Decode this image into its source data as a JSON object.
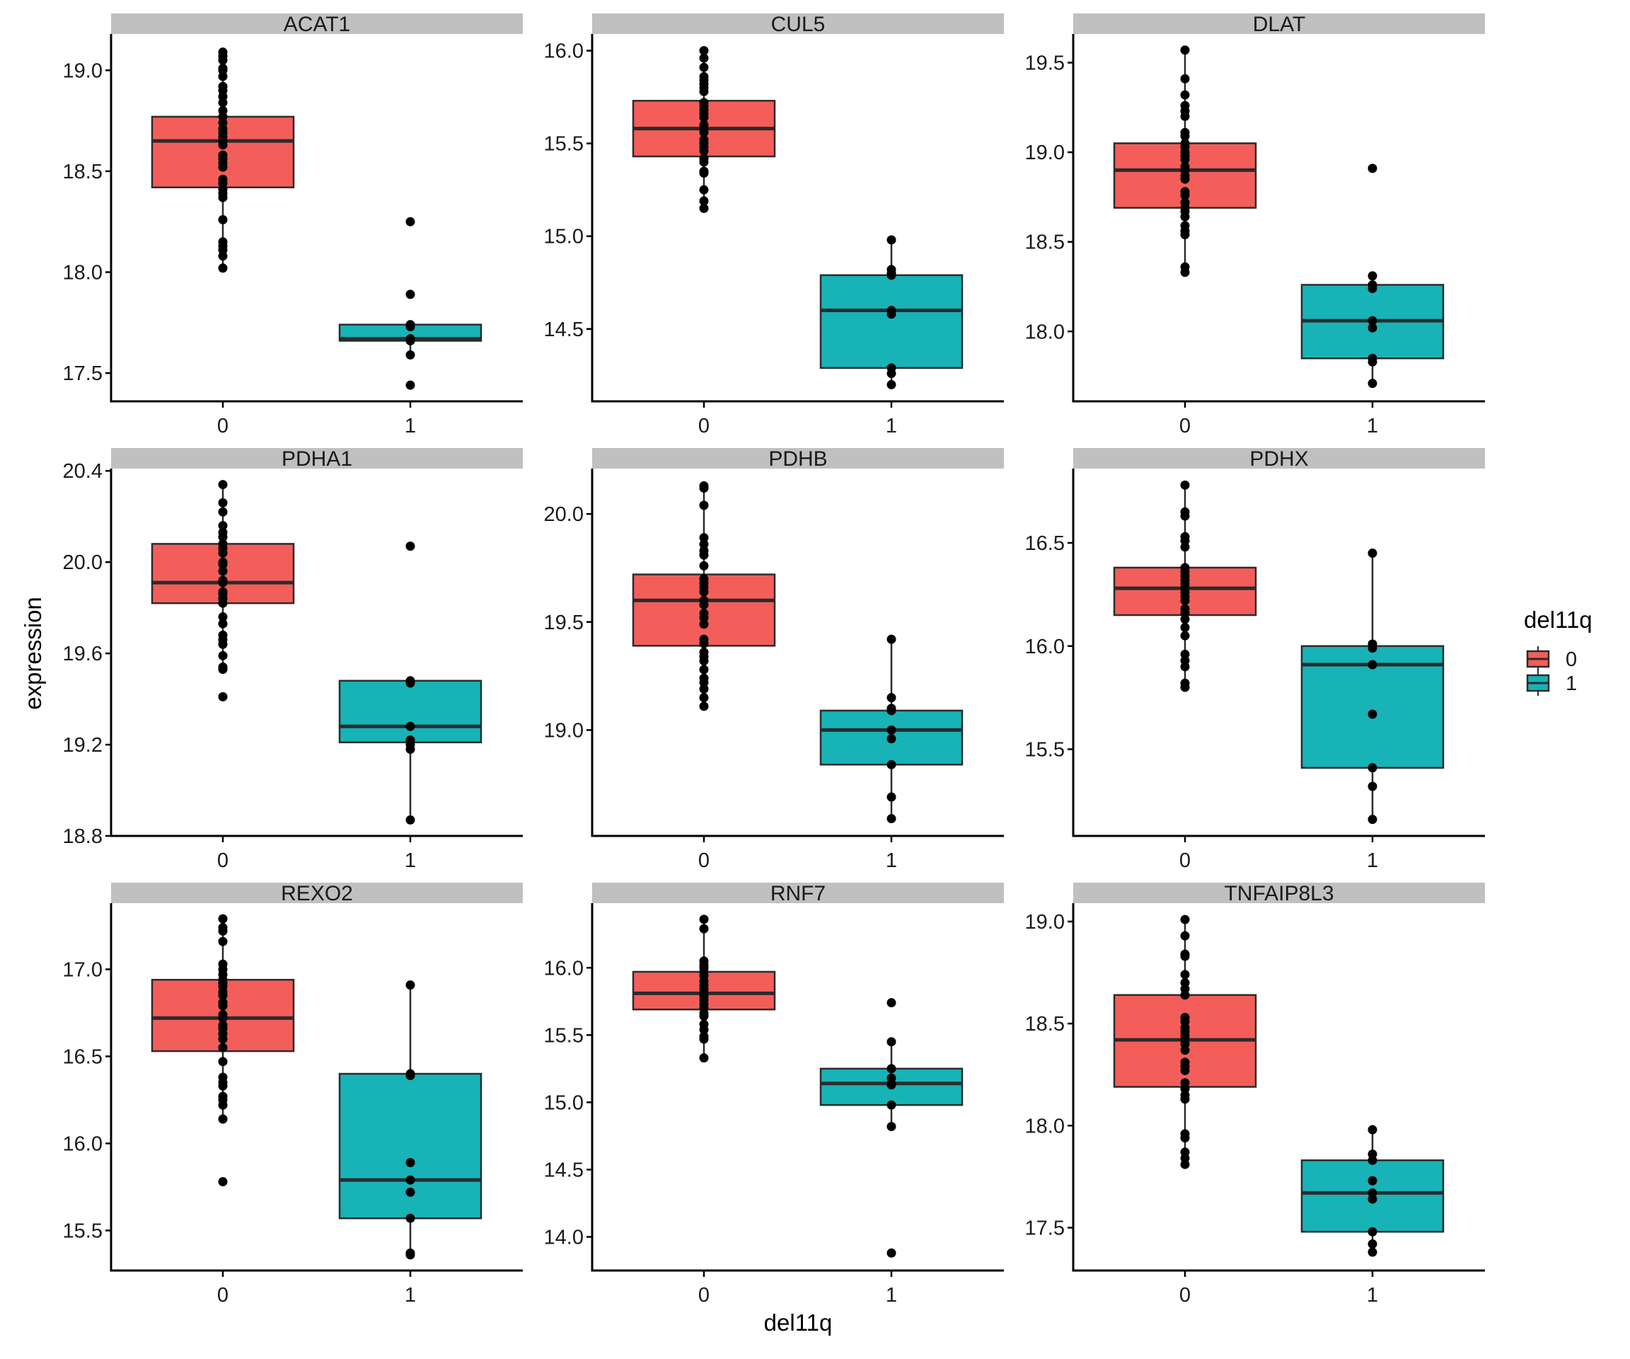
{
  "chart_data": {
    "type": "box",
    "layout": "facet_wrap 3x3, free y scales",
    "xlabel": "del11q",
    "ylabel": "expression",
    "categories": [
      "0",
      "1"
    ],
    "legend": {
      "title": "del11q",
      "position": "right",
      "entries": [
        {
          "label": "0",
          "color": "#F35E5A"
        },
        {
          "label": "1",
          "color": "#17B3B7"
        }
      ]
    },
    "grid": false,
    "panels": [
      {
        "title": "ACAT1",
        "ylim": [
          17.36,
          19.18
        ],
        "yticks": [
          "17.5",
          "18.0",
          "18.5",
          "19.0"
        ],
        "groups": [
          {
            "category": "0",
            "q1": 18.42,
            "median": 18.65,
            "q3": 18.77,
            "whisker_low": 18.02,
            "whisker_high": 19.09,
            "points": [
              19.09,
              19.07,
              19.05,
              19.01,
              19.0,
              18.97,
              18.92,
              18.9,
              18.87,
              18.84,
              18.8,
              18.77,
              18.74,
              18.71,
              18.69,
              18.67,
              18.65,
              18.63,
              18.58,
              18.56,
              18.54,
              18.52,
              18.46,
              18.44,
              18.41,
              18.39,
              18.37,
              18.26,
              18.15,
              18.13,
              18.11,
              18.08,
              18.02
            ]
          },
          {
            "category": "1",
            "q1": 17.66,
            "median": 17.67,
            "q3": 17.74,
            "whisker_low": 17.59,
            "whisker_high": 17.74,
            "points": [
              18.25,
              17.89,
              17.74,
              17.73,
              17.67,
              17.66,
              17.59,
              17.44
            ]
          }
        ]
      },
      {
        "title": "CUL5",
        "ylim": [
          14.11,
          16.09
        ],
        "yticks": [
          "14.5",
          "15.0",
          "15.5",
          "16.0"
        ],
        "groups": [
          {
            "category": "0",
            "q1": 15.43,
            "median": 15.58,
            "q3": 15.73,
            "whisker_low": 15.15,
            "whisker_high": 16.0,
            "points": [
              16.0,
              15.96,
              15.91,
              15.86,
              15.84,
              15.82,
              15.8,
              15.78,
              15.72,
              15.7,
              15.68,
              15.66,
              15.64,
              15.6,
              15.58,
              15.56,
              15.52,
              15.5,
              15.48,
              15.46,
              15.42,
              15.4,
              15.35,
              15.34,
              15.25,
              15.19,
              15.15
            ]
          },
          {
            "category": "1",
            "q1": 14.29,
            "median": 14.6,
            "q3": 14.79,
            "whisker_low": 14.2,
            "whisker_high": 14.98,
            "points": [
              14.98,
              14.82,
              14.8,
              14.79,
              14.6,
              14.58,
              14.29,
              14.26,
              14.2
            ]
          }
        ]
      },
      {
        "title": "DLAT",
        "ylim": [
          17.61,
          19.66
        ],
        "yticks": [
          "18.0",
          "18.5",
          "19.0",
          "19.5"
        ],
        "groups": [
          {
            "category": "0",
            "q1": 18.69,
            "median": 18.9,
            "q3": 19.05,
            "whisker_low": 18.33,
            "whisker_high": 19.57,
            "points": [
              19.57,
              19.41,
              19.32,
              19.26,
              19.23,
              19.2,
              19.11,
              19.09,
              19.05,
              19.03,
              19.0,
              18.98,
              18.96,
              18.92,
              18.9,
              18.87,
              18.85,
              18.78,
              18.76,
              18.72,
              18.69,
              18.67,
              18.64,
              18.59,
              18.56,
              18.54,
              18.36,
              18.33
            ]
          },
          {
            "category": "1",
            "q1": 17.85,
            "median": 18.06,
            "q3": 18.26,
            "whisker_low": 17.71,
            "whisker_high": 18.31,
            "points": [
              18.91,
              18.31,
              18.26,
              18.24,
              18.06,
              18.02,
              17.85,
              17.83,
              17.71
            ]
          }
        ]
      },
      {
        "title": "PDHA1",
        "ylim": [
          18.8,
          20.41
        ],
        "yticks": [
          "18.8",
          "19.2",
          "19.6",
          "20.0",
          "20.4"
        ],
        "groups": [
          {
            "category": "0",
            "q1": 19.82,
            "median": 19.91,
            "q3": 20.08,
            "whisker_low": 19.53,
            "whisker_high": 20.34,
            "points": [
              20.34,
              20.26,
              20.22,
              20.16,
              20.13,
              20.11,
              20.08,
              20.06,
              20.04,
              20.0,
              19.99,
              19.96,
              19.92,
              19.91,
              19.87,
              19.86,
              19.84,
              19.82,
              19.76,
              19.73,
              19.68,
              19.66,
              19.64,
              19.59,
              19.54,
              19.53,
              19.41
            ]
          },
          {
            "category": "1",
            "q1": 19.21,
            "median": 19.28,
            "q3": 19.48,
            "whisker_low": 18.87,
            "whisker_high": 19.48,
            "points": [
              20.07,
              19.48,
              19.47,
              19.28,
              19.22,
              19.2,
              19.18,
              18.87
            ]
          }
        ]
      },
      {
        "title": "PDHB",
        "ylim": [
          18.51,
          20.21
        ],
        "yticks": [
          "19.0",
          "19.5",
          "20.0"
        ],
        "groups": [
          {
            "category": "0",
            "q1": 19.39,
            "median": 19.6,
            "q3": 19.72,
            "whisker_low": 19.11,
            "whisker_high": 20.13,
            "points": [
              20.13,
              20.12,
              20.04,
              19.89,
              19.86,
              19.83,
              19.81,
              19.76,
              19.7,
              19.68,
              19.66,
              19.64,
              19.6,
              19.58,
              19.54,
              19.52,
              19.49,
              19.42,
              19.4,
              19.36,
              19.34,
              19.32,
              19.28,
              19.24,
              19.22,
              19.19,
              19.15,
              19.11
            ]
          },
          {
            "category": "1",
            "q1": 18.84,
            "median": 19.0,
            "q3": 19.09,
            "whisker_low": 18.59,
            "whisker_high": 19.42,
            "points": [
              19.42,
              19.15,
              19.1,
              19.09,
              19.0,
              18.96,
              18.84,
              18.69,
              18.59
            ]
          }
        ]
      },
      {
        "title": "PDHX",
        "ylim": [
          15.08,
          16.86
        ],
        "yticks": [
          "15.5",
          "16.0",
          "16.5"
        ],
        "groups": [
          {
            "category": "0",
            "q1": 16.15,
            "median": 16.28,
            "q3": 16.38,
            "whisker_low": 15.8,
            "whisker_high": 16.78,
            "points": [
              16.78,
              16.65,
              16.63,
              16.53,
              16.51,
              16.48,
              16.38,
              16.36,
              16.34,
              16.32,
              16.3,
              16.28,
              16.26,
              16.24,
              16.22,
              16.18,
              16.16,
              16.13,
              16.09,
              16.05,
              15.96,
              15.93,
              15.9,
              15.82,
              15.8
            ]
          },
          {
            "category": "1",
            "q1": 15.41,
            "median": 15.91,
            "q3": 16.0,
            "whisker_low": 15.16,
            "whisker_high": 16.45,
            "points": [
              16.45,
              16.01,
              15.99,
              15.91,
              15.67,
              15.41,
              15.32,
              15.16
            ]
          }
        ]
      },
      {
        "title": "REXO2",
        "ylim": [
          15.27,
          17.38
        ],
        "yticks": [
          "15.5",
          "16.0",
          "16.5",
          "17.0"
        ],
        "groups": [
          {
            "category": "0",
            "q1": 16.53,
            "median": 16.72,
            "q3": 16.94,
            "whisker_low": 16.14,
            "whisker_high": 17.29,
            "points": [
              17.29,
              17.24,
              17.22,
              17.16,
              17.03,
              17.0,
              16.97,
              16.94,
              16.92,
              16.9,
              16.87,
              16.85,
              16.81,
              16.79,
              16.74,
              16.72,
              16.68,
              16.66,
              16.63,
              16.6,
              16.55,
              16.47,
              16.38,
              16.35,
              16.33,
              16.27,
              16.25,
              16.22,
              16.14,
              15.78
            ]
          },
          {
            "category": "1",
            "q1": 15.57,
            "median": 15.79,
            "q3": 16.4,
            "whisker_low": 15.36,
            "whisker_high": 16.91,
            "points": [
              16.91,
              16.4,
              16.39,
              15.89,
              15.79,
              15.72,
              15.57,
              15.37,
              15.36
            ]
          }
        ]
      },
      {
        "title": "RNF7",
        "ylim": [
          13.75,
          16.48
        ],
        "yticks": [
          "14.0",
          "14.5",
          "15.0",
          "15.5",
          "16.0"
        ],
        "groups": [
          {
            "category": "0",
            "q1": 15.69,
            "median": 15.81,
            "q3": 15.97,
            "whisker_low": 15.33,
            "whisker_high": 16.36,
            "points": [
              16.36,
              16.29,
              16.05,
              16.02,
              16.0,
              15.97,
              15.94,
              15.9,
              15.87,
              15.84,
              15.81,
              15.79,
              15.76,
              15.73,
              15.7,
              15.66,
              15.64,
              15.58,
              15.54,
              15.49,
              15.47,
              15.33
            ]
          },
          {
            "category": "1",
            "q1": 14.98,
            "median": 15.14,
            "q3": 15.25,
            "whisker_low": 14.82,
            "whisker_high": 15.45,
            "points": [
              15.74,
              15.45,
              15.25,
              15.18,
              15.14,
              15.13,
              14.98,
              14.82,
              13.88
            ]
          }
        ]
      },
      {
        "title": "TNFAIP8L3",
        "ylim": [
          17.29,
          19.09
        ],
        "yticks": [
          "17.5",
          "18.0",
          "18.5",
          "19.0"
        ],
        "groups": [
          {
            "category": "0",
            "q1": 18.19,
            "median": 18.42,
            "q3": 18.64,
            "whisker_low": 17.81,
            "whisker_high": 19.01,
            "points": [
              19.01,
              18.93,
              18.84,
              18.83,
              18.74,
              18.7,
              18.67,
              18.64,
              18.53,
              18.51,
              18.48,
              18.46,
              18.44,
              18.42,
              18.4,
              18.37,
              18.31,
              18.29,
              18.27,
              18.21,
              18.18,
              18.15,
              18.13,
              17.96,
              17.94,
              17.87,
              17.84,
              17.81
            ]
          },
          {
            "category": "1",
            "q1": 17.48,
            "median": 17.67,
            "q3": 17.83,
            "whisker_low": 17.38,
            "whisker_high": 17.98,
            "points": [
              17.98,
              17.86,
              17.83,
              17.73,
              17.67,
              17.64,
              17.48,
              17.42,
              17.38
            ]
          }
        ]
      }
    ]
  }
}
